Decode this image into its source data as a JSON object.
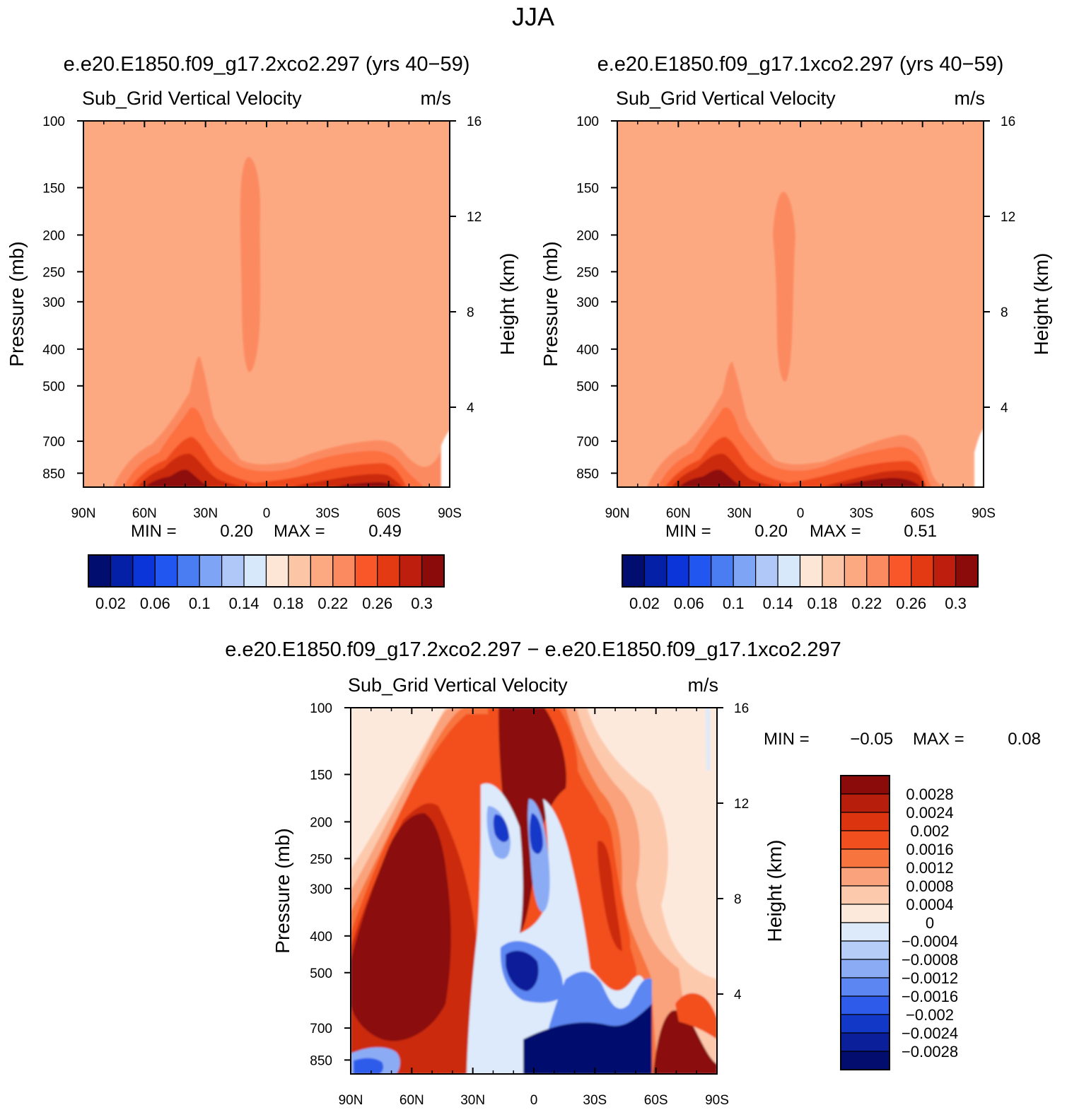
{
  "title": "JJA",
  "colors": {
    "panel_bg": "#fca982",
    "lvl_020": "#fc8a60",
    "lvl_022": "#fd7040",
    "lvl_024": "#ee4a1e",
    "lvl_026": "#cc2b0c",
    "lvl_028": "#aa1608",
    "lvl_030": "#8e0b07"
  },
  "chart_data": [
    {
      "type": "contour",
      "run": "e.e20.E1850.f09_g17.2xco2.297 (yrs 40−59)",
      "title": "Sub_Grid Vertical Velocity",
      "units": "m/s",
      "ylabel": "Pressure (mb)",
      "y2label": "Height (km)",
      "x_ticks": [
        "90N",
        "60N",
        "30N",
        "0",
        "30S",
        "60S",
        "90S"
      ],
      "p_ticks": [
        "100",
        "150",
        "200",
        "250",
        "300",
        "400",
        "500",
        "700",
        "850"
      ],
      "p_values": [
        100,
        150,
        200,
        250,
        300,
        400,
        500,
        700,
        850
      ],
      "z_ticks": [
        "16",
        "12",
        "8",
        "4"
      ],
      "z_values": [
        16,
        12,
        8,
        4
      ],
      "min_label": "MIN =",
      "min": "0.20",
      "max_label": "MAX =",
      "max": "0.49",
      "cb_labels": [
        "0.02",
        "0.06",
        "0.1",
        "0.14",
        "0.18",
        "0.22",
        "0.26",
        "0.3"
      ],
      "cb_colors": [
        "#020e6f",
        "#0420a6",
        "#0b35d8",
        "#2256f0",
        "#4a7cf2",
        "#7ea4f5",
        "#b0c8f8",
        "#d8e8fb",
        "#fde6d6",
        "#fcc6a6",
        "#fca982",
        "#fc8a60",
        "#f9562a",
        "#e33a14",
        "#bd1e0d",
        "#8b0a0a"
      ]
    },
    {
      "type": "contour",
      "run": "e.e20.E1850.f09_g17.1xco2.297 (yrs 40−59)",
      "title": "Sub_Grid Vertical Velocity",
      "units": "m/s",
      "ylabel": "Pressure (mb)",
      "y2label": "Height (km)",
      "x_ticks": [
        "90N",
        "60N",
        "30N",
        "0",
        "30S",
        "60S",
        "90S"
      ],
      "p_ticks": [
        "100",
        "150",
        "200",
        "250",
        "300",
        "400",
        "500",
        "700",
        "850"
      ],
      "p_values": [
        100,
        150,
        200,
        250,
        300,
        400,
        500,
        700,
        850
      ],
      "z_ticks": [
        "16",
        "12",
        "8",
        "4"
      ],
      "z_values": [
        16,
        12,
        8,
        4
      ],
      "min_label": "MIN =",
      "min": "0.20",
      "max_label": "MAX =",
      "max": "0.51",
      "cb_labels": [
        "0.02",
        "0.06",
        "0.1",
        "0.14",
        "0.18",
        "0.22",
        "0.26",
        "0.3"
      ],
      "cb_colors": [
        "#020e6f",
        "#0420a6",
        "#0b35d8",
        "#2256f0",
        "#4a7cf2",
        "#7ea4f5",
        "#b0c8f8",
        "#d8e8fb",
        "#fde6d6",
        "#fcc6a6",
        "#fca982",
        "#fc8a60",
        "#f9562a",
        "#e33a14",
        "#bd1e0d",
        "#8b0a0a"
      ]
    },
    {
      "type": "contour",
      "run": "e.e20.E1850.f09_g17.2xco2.297 − e.e20.E1850.f09_g17.1xco2.297",
      "title": "Sub_Grid Vertical Velocity",
      "units": "m/s",
      "ylabel": "Pressure (mb)",
      "y2label": "Height (km)",
      "x_ticks": [
        "90N",
        "60N",
        "30N",
        "0",
        "30S",
        "60S",
        "90S"
      ],
      "p_ticks": [
        "100",
        "150",
        "200",
        "250",
        "300",
        "400",
        "500",
        "700",
        "850"
      ],
      "p_values": [
        100,
        150,
        200,
        250,
        300,
        400,
        500,
        700,
        850
      ],
      "z_ticks": [
        "16",
        "12",
        "8",
        "4"
      ],
      "z_values": [
        16,
        12,
        8,
        4
      ],
      "min_label": "MIN =",
      "min": "−0.05",
      "max_label": "MAX =",
      "max": "0.08",
      "cb_labels": [
        "0.0028",
        "0.0024",
        "0.002",
        "0.0016",
        "0.0012",
        "0.0008",
        "0.0004",
        "0",
        "−0.0004",
        "−0.0008",
        "−0.0012",
        "−0.0016",
        "−0.002",
        "−0.0024",
        "−0.0028"
      ],
      "cb_colors": [
        "#8b0a0a",
        "#b81e0c",
        "#dd3410",
        "#f24f1f",
        "#f8743f",
        "#f9a27c",
        "#fcc9ad",
        "#fde9dc",
        "#dceafb",
        "#b6cdf8",
        "#8bacf5",
        "#5c86f2",
        "#2e5bea",
        "#1238c8",
        "#0a1f99",
        "#030d6e"
      ]
    }
  ],
  "annotations": {
    "min_label": "MIN =",
    "max_label": "MAX ="
  }
}
